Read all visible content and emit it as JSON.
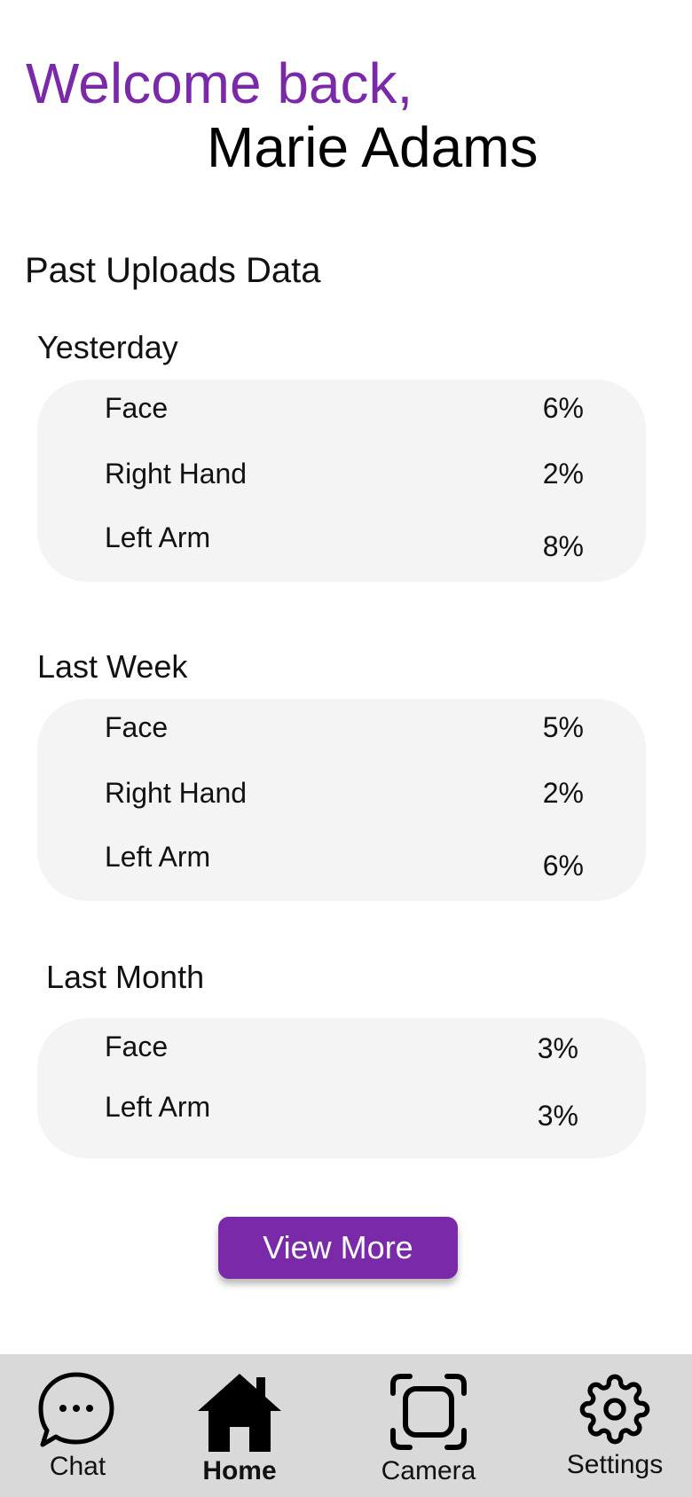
{
  "header": {
    "welcome": "Welcome back,",
    "user_name": "Marie Adams"
  },
  "section_title": "Past Uploads Data",
  "periods": [
    {
      "label": "Yesterday",
      "entries": [
        {
          "name": "Face",
          "percent": "6%"
        },
        {
          "name": "Right Hand",
          "percent": "2%"
        },
        {
          "name": "Left Arm",
          "percent": "8%"
        }
      ]
    },
    {
      "label": "Last Week",
      "entries": [
        {
          "name": "Face",
          "percent": "5%"
        },
        {
          "name": "Right Hand",
          "percent": "2%"
        },
        {
          "name": "Left Arm",
          "percent": "6%"
        }
      ]
    },
    {
      "label": "Last Month",
      "entries": [
        {
          "name": "Face",
          "percent": "3%"
        },
        {
          "name": "Left Arm",
          "percent": "3%"
        }
      ]
    }
  ],
  "view_more_label": "View More",
  "tabs": [
    {
      "label": "Chat",
      "icon": "chat-bubble-icon"
    },
    {
      "label": "Home",
      "icon": "home-icon",
      "active": true
    },
    {
      "label": "Camera",
      "icon": "camera-frame-icon"
    },
    {
      "label": "Settings",
      "icon": "gear-icon"
    }
  ],
  "colors": {
    "accent": "#7a2aa8",
    "card_bg": "#f4f4f4",
    "tabbar_bg": "#d9d9d9"
  }
}
